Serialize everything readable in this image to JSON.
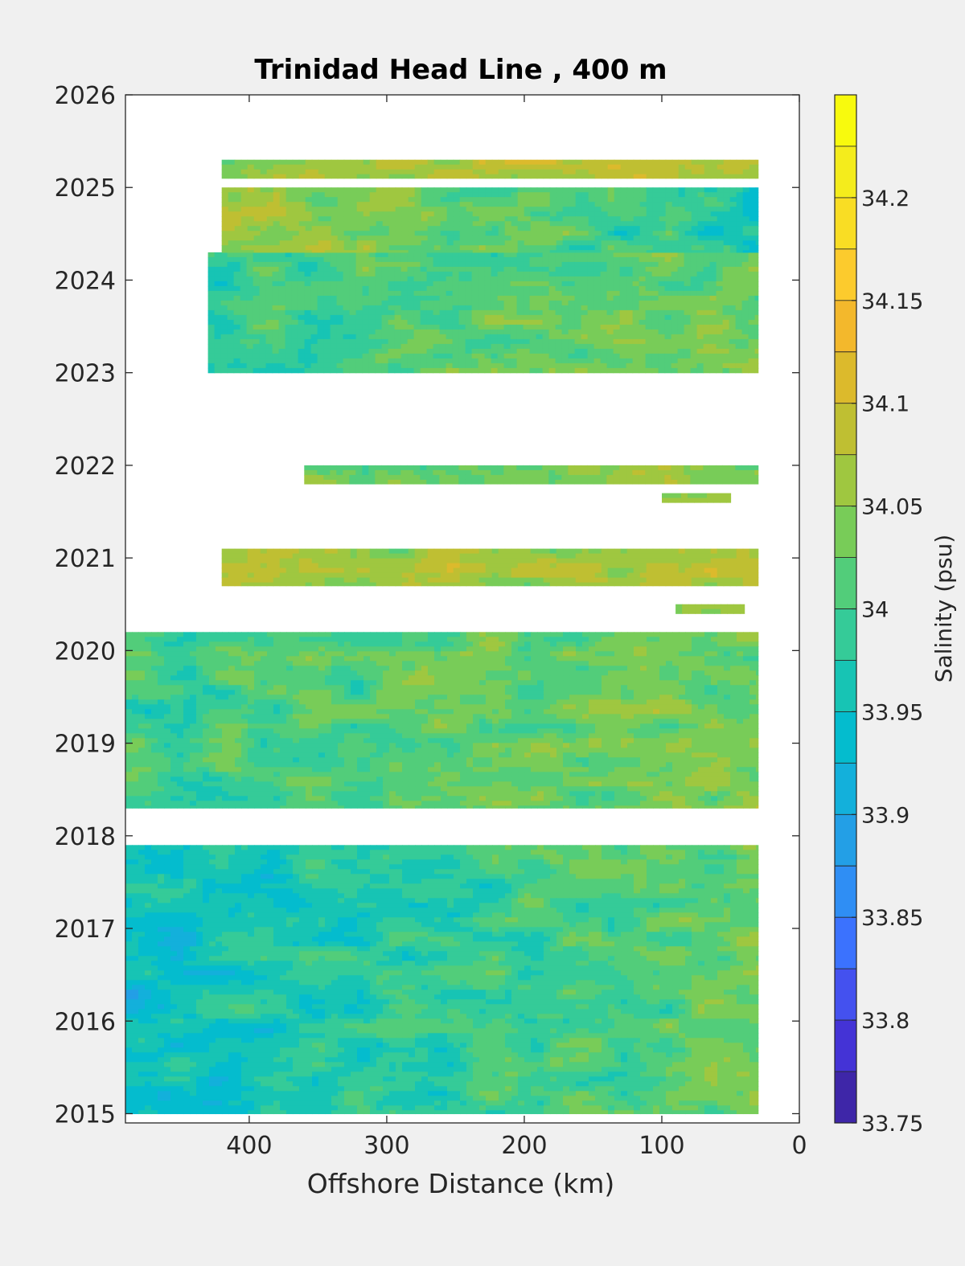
{
  "chart_data": {
    "type": "heatmap",
    "title": "Trinidad Head Line , 400 m",
    "xlabel": "Offshore Distance (km)",
    "ylabel": "",
    "xlim": [
      490,
      0
    ],
    "xticks": [
      "400",
      "300",
      "200",
      "100",
      "0"
    ],
    "ylim": [
      2014.9,
      2026
    ],
    "yticks": [
      "2015",
      "2016",
      "2017",
      "2018",
      "2019",
      "2020",
      "2021",
      "2022",
      "2023",
      "2024",
      "2025",
      "2026"
    ],
    "colorbar": {
      "label": "Salinity (psu)",
      "range": [
        33.75,
        34.25
      ],
      "levels": 20,
      "ticks": [
        "33.75",
        "33.8",
        "33.85",
        "33.9",
        "33.95",
        "34",
        "34.05",
        "34.1",
        "34.15",
        "34.2"
      ],
      "colors": [
        "#3e26a8",
        "#4433d6",
        "#4451ef",
        "#3b72fe",
        "#2f8ef4",
        "#239fe6",
        "#13b0db",
        "#04bcce",
        "#17c4b4",
        "#35cb98",
        "#52cd7a",
        "#78cc58",
        "#9fc740",
        "#bfbf32",
        "#dcba2c",
        "#f3b82c",
        "#fccb2d",
        "#f9dd24",
        "#f4ec1c",
        "#f8fa0d"
      ]
    },
    "bands": [
      {
        "y": [
          2015.0,
          2017.9
        ],
        "x": [
          490,
          30
        ],
        "base": 33.99,
        "gradient": 0.09
      },
      {
        "y": [
          2018.3,
          2020.2
        ],
        "x": [
          490,
          30
        ],
        "base": 34.02,
        "gradient": 0.05
      },
      {
        "y": [
          2020.4,
          2020.5
        ],
        "x": [
          90,
          40
        ],
        "base": 34.05,
        "gradient": 0.0
      },
      {
        "y": [
          2020.7,
          2021.1
        ],
        "x": [
          420,
          30
        ],
        "base": 34.06,
        "gradient": 0.03
      },
      {
        "y": [
          2021.6,
          2021.7
        ],
        "x": [
          100,
          50
        ],
        "base": 34.05,
        "gradient": 0.0
      },
      {
        "y": [
          2021.8,
          2022.0
        ],
        "x": [
          360,
          30
        ],
        "base": 34.03,
        "gradient": 0.02
      },
      {
        "y": [
          2023.0,
          2024.3
        ],
        "x": [
          430,
          30
        ],
        "base": 34.01,
        "gradient": 0.05
      },
      {
        "y": [
          2024.3,
          2025.0
        ],
        "x": [
          420,
          30
        ],
        "base": 34.02,
        "gradient": -0.12
      },
      {
        "y": [
          2025.1,
          2025.3
        ],
        "x": [
          420,
          30
        ],
        "base": 34.07,
        "gradient": 0.03
      }
    ]
  }
}
